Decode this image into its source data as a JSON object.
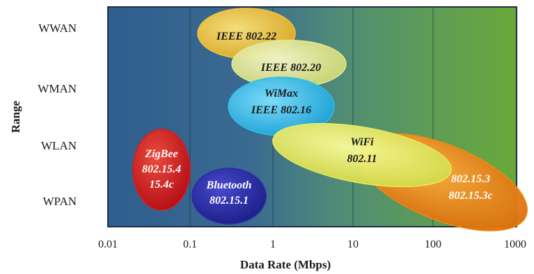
{
  "chart": {
    "y_title": "Range",
    "x_title": "Data Rate (Mbps)",
    "range_levels": [
      "WWAN",
      "WMAN",
      "WLAN",
      "WPAN"
    ],
    "x_ticks": [
      "0.01",
      "0.1",
      "1",
      "10",
      "100",
      "1000"
    ],
    "x_scale": "log",
    "x_range": [
      0.01,
      1000
    ],
    "background_gradient": [
      "#2f5d8e",
      "#3b6a8f",
      "#4e8a79",
      "#5f9e5a",
      "#6aa83a"
    ]
  },
  "standards": [
    {
      "key": "ieee80222",
      "lines": [
        "IEEE 802.22"
      ],
      "fill": "#f2c73a",
      "text_color": "#1a1a1a",
      "x_rate": 0.35,
      "range_level": "WWAN"
    },
    {
      "key": "ieee80220",
      "lines": [
        "IEEE 802.20"
      ],
      "fill": "#e6ea9a",
      "text_color": "#1a1a1a",
      "x_rate": 1.3,
      "range_level": "WWAN-WMAN"
    },
    {
      "key": "wimax",
      "lines": [
        "WiMax",
        "IEEE 802.16"
      ],
      "fill": "#33bde8",
      "text_color": "#1a1a1a",
      "x_rate": 1.0,
      "range_level": "WMAN"
    },
    {
      "key": "zigbee",
      "lines": [
        "ZigBee",
        "802.15.4",
        "15.4c"
      ],
      "fill": "#dd1a1a",
      "text_color": "#ffffff",
      "x_rate": 0.05,
      "range_level": "WPAN"
    },
    {
      "key": "bluetooth",
      "lines": [
        "Bluetooth",
        "802.15.1"
      ],
      "fill": "#2a2aa8",
      "text_color": "#ffffff",
      "x_rate": 0.35,
      "range_level": "WPAN"
    },
    {
      "key": "uwb",
      "lines": [
        "802.15.3",
        "802.15.3c"
      ],
      "fill": "#f08a10",
      "text_color": "#ffffff",
      "x_rate": 150,
      "range_level": "WPAN"
    },
    {
      "key": "wifi",
      "lines": [
        "WiFi",
        "802.11"
      ],
      "fill": "#e8ec60",
      "text_color": "#1a1a1a",
      "x_rate": 10,
      "range_level": "WLAN"
    }
  ]
}
